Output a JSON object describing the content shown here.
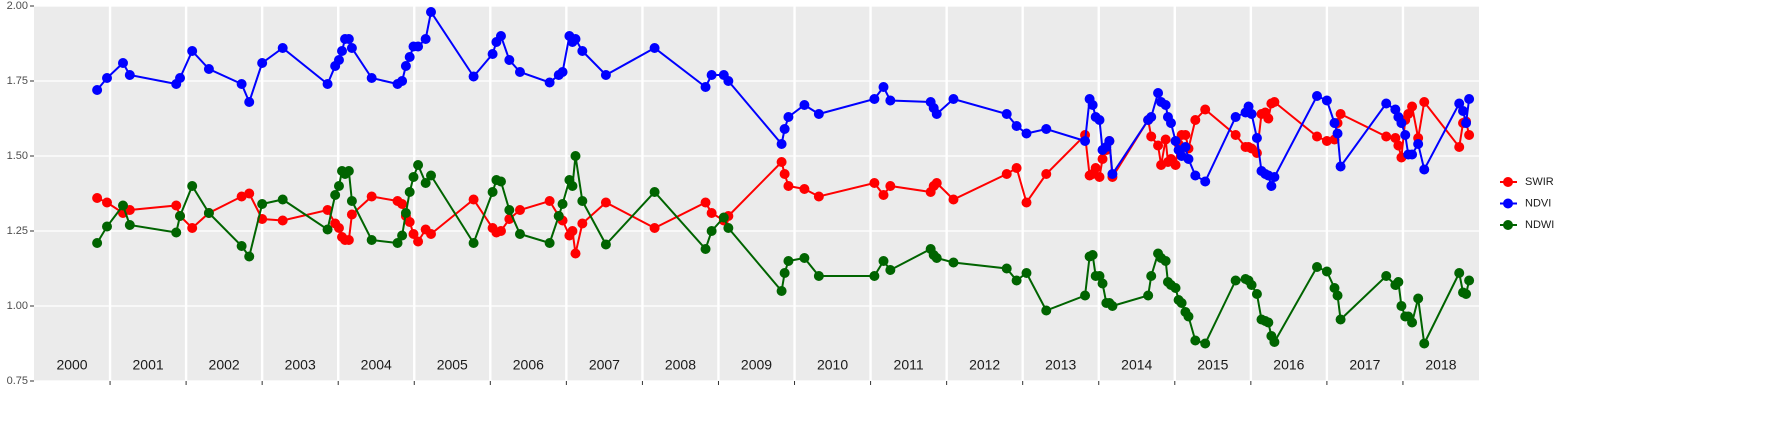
{
  "chart_data": {
    "type": "line",
    "x": [
      2000.83,
      2000.96,
      2001.17,
      2001.26,
      2001.87,
      2001.92,
      2002.08,
      2002.3,
      2002.73,
      2002.83,
      2003.0,
      2003.27,
      2003.86,
      2003.96,
      2004.01,
      2004.05,
      2004.09,
      2004.14,
      2004.18,
      2004.44,
      2004.78,
      2004.84,
      2004.89,
      2004.94,
      2004.99,
      2005.05,
      2005.15,
      2005.22,
      2005.78,
      2006.03,
      2006.08,
      2006.14,
      2006.25,
      2006.39,
      2006.78,
      2006.9,
      2006.95,
      2007.04,
      2007.08,
      2007.12,
      2007.21,
      2007.52,
      2008.16,
      2008.83,
      2008.91,
      2009.07,
      2009.13,
      2009.83,
      2009.87,
      2009.92,
      2010.13,
      2010.32,
      2011.05,
      2011.17,
      2011.26,
      2011.79,
      2011.83,
      2011.87,
      2012.09,
      2012.79,
      2012.92,
      2013.05,
      2013.31,
      2013.82,
      2013.88,
      2013.92,
      2013.96,
      2014.01,
      2014.05,
      2014.1,
      2014.14,
      2014.18,
      2014.65,
      2014.69,
      2014.78,
      2014.82,
      2014.88,
      2014.91,
      2014.95,
      2015.01,
      2015.05,
      2015.09,
      2015.14,
      2015.18,
      2015.27,
      2015.4,
      2015.8,
      2015.93,
      2015.97,
      2016.01,
      2016.08,
      2016.14,
      2016.19,
      2016.23,
      2016.27,
      2016.31,
      2016.87,
      2017.0,
      2017.1,
      2017.14,
      2017.18,
      2017.78,
      2017.9,
      2017.94,
      2017.98,
      2018.03,
      2018.07,
      2018.12,
      2018.2,
      2018.28,
      2018.74,
      2018.79,
      2018.83,
      2018.87
    ],
    "series": [
      {
        "name": "SWIR",
        "color": "#ff0000",
        "values": [
          1.36,
          1.345,
          1.31,
          1.32,
          1.335,
          1.3,
          1.26,
          1.31,
          1.365,
          1.375,
          1.29,
          1.285,
          1.32,
          1.275,
          1.26,
          1.23,
          1.22,
          1.22,
          1.305,
          1.365,
          1.35,
          1.34,
          1.3,
          1.28,
          1.24,
          1.215,
          1.255,
          1.24,
          1.355,
          1.26,
          1.245,
          1.25,
          1.29,
          1.32,
          1.35,
          1.3,
          1.285,
          1.235,
          1.25,
          1.175,
          1.275,
          1.345,
          1.26,
          1.345,
          1.31,
          1.285,
          1.3,
          1.48,
          1.44,
          1.4,
          1.39,
          1.365,
          1.41,
          1.37,
          1.4,
          1.38,
          1.4,
          1.41,
          1.355,
          1.44,
          1.46,
          1.345,
          1.44,
          1.57,
          1.435,
          1.44,
          1.46,
          1.43,
          1.49,
          1.52,
          1.55,
          1.43,
          1.62,
          1.565,
          1.535,
          1.47,
          1.555,
          1.48,
          1.49,
          1.47,
          1.54,
          1.57,
          1.57,
          1.525,
          1.62,
          1.655,
          1.57,
          1.53,
          1.53,
          1.525,
          1.51,
          1.64,
          1.645,
          1.625,
          1.675,
          1.68,
          1.565,
          1.55,
          1.555,
          1.61,
          1.64,
          1.565,
          1.56,
          1.535,
          1.495,
          1.62,
          1.64,
          1.665,
          1.56,
          1.68,
          1.53,
          1.61,
          1.615,
          1.57
        ]
      },
      {
        "name": "NDVI",
        "color": "#0000ff",
        "values": [
          1.72,
          1.76,
          1.81,
          1.77,
          1.74,
          1.76,
          1.85,
          1.79,
          1.74,
          1.68,
          1.81,
          1.86,
          1.74,
          1.8,
          1.82,
          1.85,
          1.89,
          1.89,
          1.86,
          1.76,
          1.74,
          1.75,
          1.8,
          1.83,
          1.865,
          1.865,
          1.89,
          1.98,
          1.765,
          1.84,
          1.88,
          1.9,
          1.82,
          1.78,
          1.745,
          1.77,
          1.78,
          1.9,
          1.88,
          1.89,
          1.85,
          1.77,
          1.86,
          1.73,
          1.77,
          1.77,
          1.75,
          1.54,
          1.59,
          1.63,
          1.67,
          1.64,
          1.69,
          1.73,
          1.685,
          1.68,
          1.66,
          1.64,
          1.69,
          1.64,
          1.6,
          1.575,
          1.59,
          1.55,
          1.69,
          1.67,
          1.63,
          1.62,
          1.52,
          1.53,
          1.55,
          1.44,
          1.62,
          1.63,
          1.71,
          1.68,
          1.67,
          1.63,
          1.61,
          1.55,
          1.52,
          1.5,
          1.53,
          1.49,
          1.435,
          1.415,
          1.63,
          1.645,
          1.665,
          1.64,
          1.56,
          1.45,
          1.44,
          1.435,
          1.4,
          1.43,
          1.7,
          1.685,
          1.61,
          1.575,
          1.465,
          1.675,
          1.655,
          1.63,
          1.61,
          1.57,
          1.505,
          1.505,
          1.54,
          1.455,
          1.675,
          1.65,
          1.61,
          1.69
        ]
      },
      {
        "name": "NDWI",
        "color": "#006400",
        "values": [
          1.21,
          1.265,
          1.335,
          1.27,
          1.245,
          1.3,
          1.4,
          1.31,
          1.2,
          1.165,
          1.34,
          1.355,
          1.255,
          1.37,
          1.4,
          1.45,
          1.44,
          1.45,
          1.35,
          1.22,
          1.21,
          1.235,
          1.31,
          1.38,
          1.43,
          1.47,
          1.41,
          1.435,
          1.21,
          1.38,
          1.42,
          1.415,
          1.32,
          1.24,
          1.21,
          1.3,
          1.34,
          1.42,
          1.4,
          1.5,
          1.35,
          1.205,
          1.38,
          1.19,
          1.25,
          1.295,
          1.26,
          1.05,
          1.11,
          1.15,
          1.16,
          1.1,
          1.1,
          1.15,
          1.12,
          1.19,
          1.17,
          1.16,
          1.145,
          1.125,
          1.085,
          1.11,
          0.985,
          1.035,
          1.165,
          1.17,
          1.1,
          1.1,
          1.075,
          1.01,
          1.01,
          1.0,
          1.035,
          1.1,
          1.175,
          1.16,
          1.15,
          1.08,
          1.07,
          1.06,
          1.02,
          1.01,
          0.98,
          0.965,
          0.885,
          0.875,
          1.085,
          1.09,
          1.085,
          1.07,
          1.04,
          0.955,
          0.95,
          0.945,
          0.9,
          0.88,
          1.13,
          1.115,
          1.06,
          1.035,
          0.955,
          1.1,
          1.07,
          1.08,
          1.0,
          0.965,
          0.965,
          0.945,
          1.025,
          0.875,
          1.11,
          1.045,
          1.04,
          1.085
        ]
      }
    ],
    "xlim": [
      2000,
      2019
    ],
    "xticks": [
      2001,
      2002,
      2003,
      2004,
      2005,
      2006,
      2007,
      2008,
      2009,
      2010,
      2011,
      2012,
      2013,
      2014,
      2015,
      2016,
      2017,
      2018
    ],
    "year_labels": [
      "2000",
      "2001",
      "2002",
      "2003",
      "2004",
      "2005",
      "2006",
      "2007",
      "2008",
      "2009",
      "2010",
      "2011",
      "2012",
      "2013",
      "2014",
      "2015",
      "2016",
      "2017",
      "2018"
    ],
    "ylim": [
      0.75,
      2.0
    ],
    "yticks": [
      {
        "value": 0.75,
        "label": "0.75"
      },
      {
        "value": 1.0,
        "label": "1.00"
      },
      {
        "value": 1.25,
        "label": "1.25"
      },
      {
        "value": 1.5,
        "label": "1.50"
      },
      {
        "value": 1.75,
        "label": "1.75"
      },
      {
        "value": 2.0,
        "label": "2.00"
      }
    ],
    "grid": true,
    "legend": "right"
  }
}
